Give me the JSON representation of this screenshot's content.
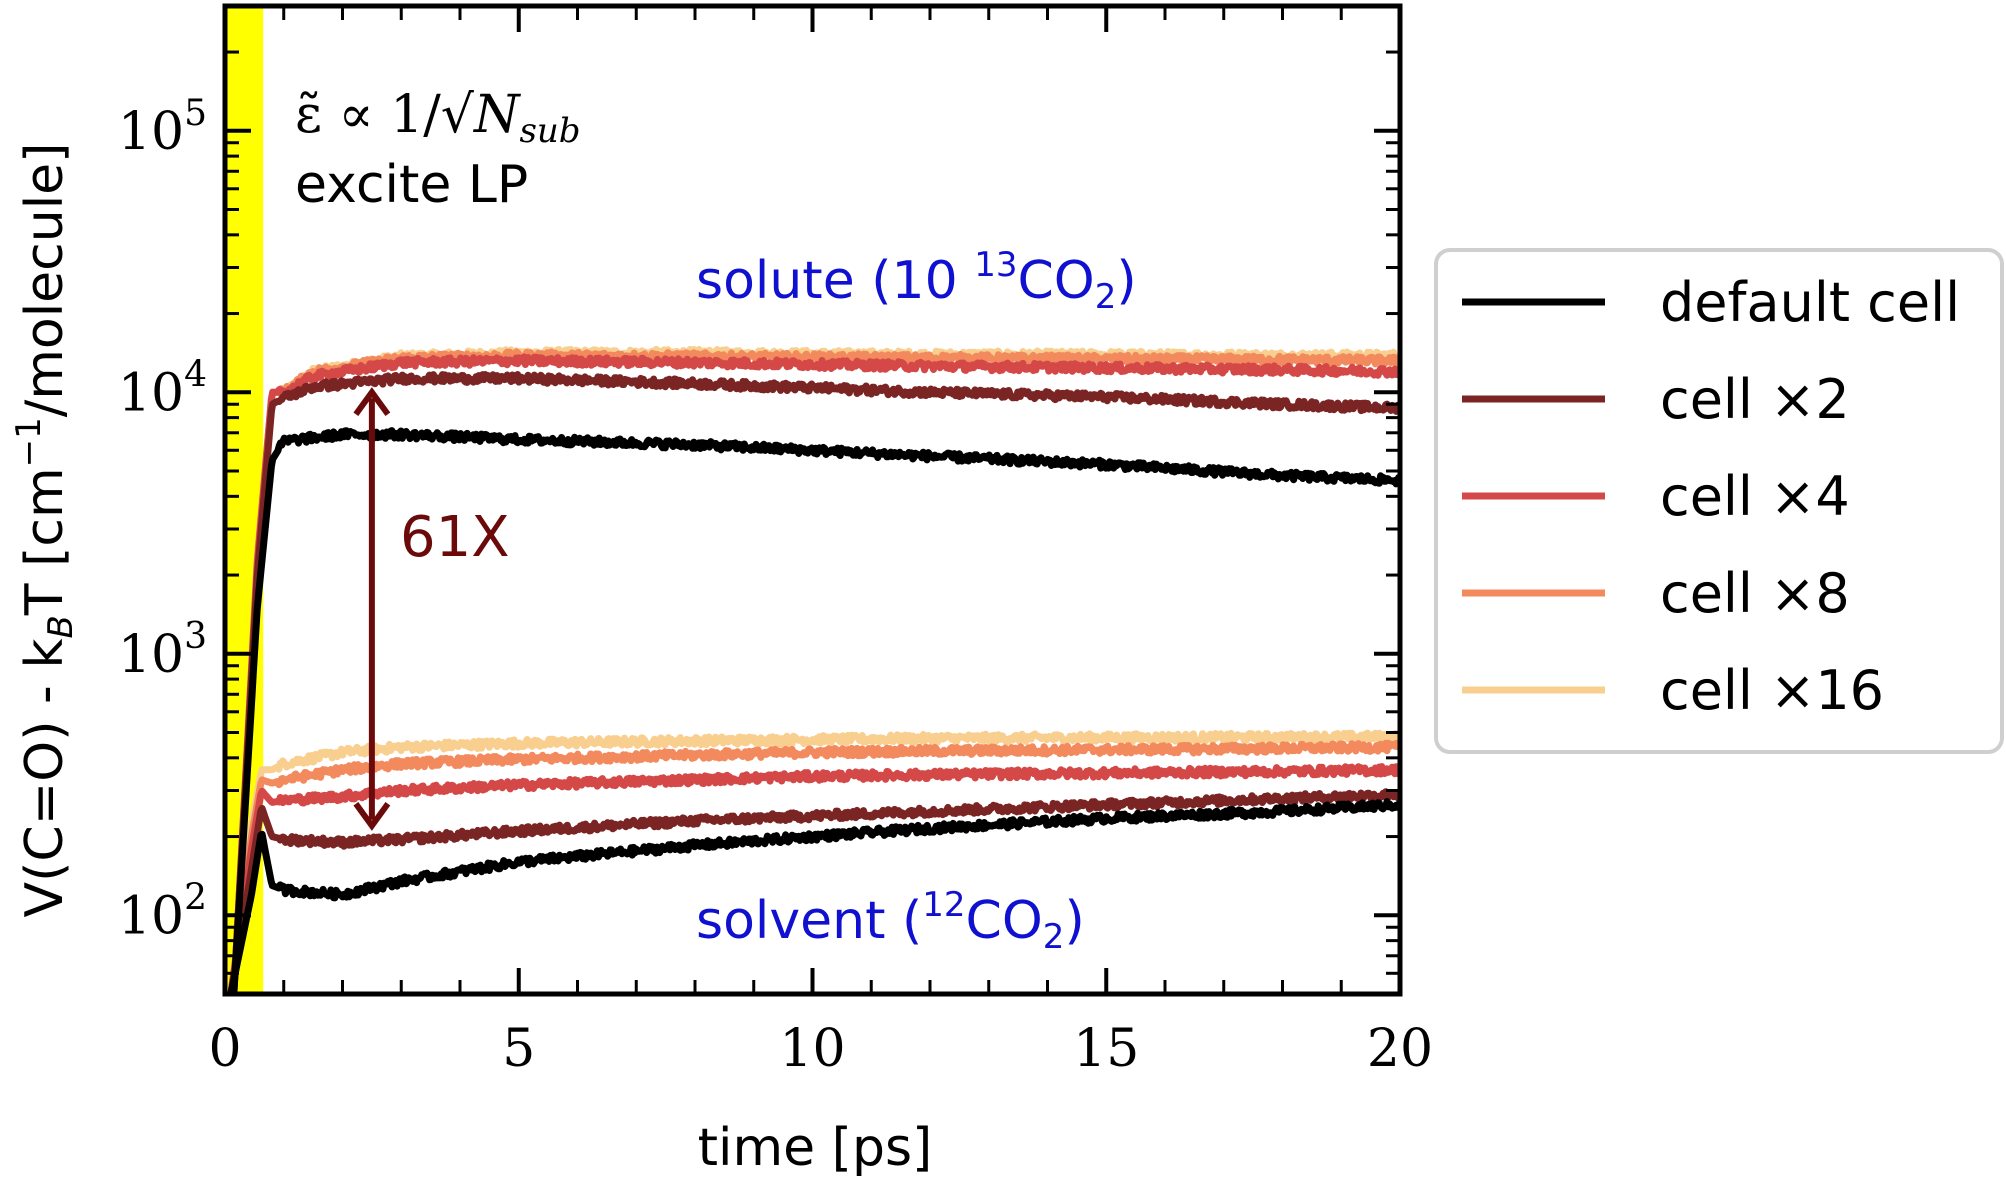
{
  "chart_data": {
    "type": "line",
    "xlabel": "time [ps]",
    "ylabel": "V(C=O) - k",
    "ylabel_sub": "B",
    "ylabel_tail": "T [cm",
    "ylabel_sup": "−1",
    "ylabel_end": "/molecule]",
    "xlim": [
      0,
      20
    ],
    "ylim": [
      50,
      300000
    ],
    "yscale": "log",
    "x_ticks": [
      "0",
      "5",
      "10",
      "15",
      "20"
    ],
    "x_tick_values": [
      0,
      5,
      10,
      15,
      20
    ],
    "y_ticks": [
      {
        "value": 100,
        "base": "10",
        "exp": "2"
      },
      {
        "value": 1000,
        "base": "10",
        "exp": "3"
      },
      {
        "value": 10000,
        "base": "10",
        "exp": "4"
      },
      {
        "value": 100000,
        "base": "10",
        "exp": "5"
      }
    ],
    "shaded_region": {
      "x_from": 0,
      "x_to": 0.65,
      "color": "#ffff00"
    },
    "legend_position": "right, outside",
    "series": [
      {
        "name": "default cell",
        "color": "#000000",
        "solute": [
          [
            0.15,
            50
          ],
          [
            0.55,
            1500
          ],
          [
            0.8,
            5500
          ],
          [
            1,
            6500
          ],
          [
            2,
            6900
          ],
          [
            3,
            6900
          ],
          [
            5,
            6600
          ],
          [
            8,
            6300
          ],
          [
            10,
            6000
          ],
          [
            12,
            5700
          ],
          [
            15,
            5300
          ],
          [
            18,
            4800
          ],
          [
            20,
            4600
          ]
        ],
        "solvent": [
          [
            0.1,
            50
          ],
          [
            0.45,
            120
          ],
          [
            0.62,
            210
          ],
          [
            0.8,
            130
          ],
          [
            1,
            125
          ],
          [
            2,
            120
          ],
          [
            3,
            135
          ],
          [
            5,
            160
          ],
          [
            8,
            185
          ],
          [
            10,
            200
          ],
          [
            12,
            215
          ],
          [
            15,
            235
          ],
          [
            18,
            250
          ],
          [
            20,
            265
          ]
        ]
      },
      {
        "name": "cell ×2",
        "color": "#7a2424",
        "solute": [
          [
            0.15,
            50
          ],
          [
            0.55,
            2000
          ],
          [
            0.8,
            9000
          ],
          [
            1,
            9500
          ],
          [
            1.5,
            10500
          ],
          [
            3,
            11300
          ],
          [
            5,
            11300
          ],
          [
            8,
            10800
          ],
          [
            10,
            10400
          ],
          [
            12,
            10000
          ],
          [
            15,
            9600
          ],
          [
            18,
            9000
          ],
          [
            20,
            8700
          ]
        ],
        "solvent": [
          [
            0.1,
            50
          ],
          [
            0.45,
            150
          ],
          [
            0.62,
            260
          ],
          [
            0.8,
            200
          ],
          [
            1,
            195
          ],
          [
            2,
            190
          ],
          [
            3,
            195
          ],
          [
            5,
            210
          ],
          [
            8,
            230
          ],
          [
            10,
            240
          ],
          [
            12,
            250
          ],
          [
            15,
            265
          ],
          [
            18,
            280
          ],
          [
            20,
            290
          ]
        ]
      },
      {
        "name": "cell ×4",
        "color": "#d44848",
        "solute": [
          [
            0.15,
            50
          ],
          [
            0.55,
            2200
          ],
          [
            0.8,
            10000
          ],
          [
            1,
            10000
          ],
          [
            1.5,
            11500
          ],
          [
            3,
            13000
          ],
          [
            5,
            13200
          ],
          [
            8,
            13000
          ],
          [
            10,
            12800
          ],
          [
            12,
            12600
          ],
          [
            15,
            12400
          ],
          [
            18,
            12200
          ],
          [
            20,
            12000
          ]
        ],
        "solvent": [
          [
            0.1,
            50
          ],
          [
            0.45,
            180
          ],
          [
            0.62,
            300
          ],
          [
            0.8,
            270
          ],
          [
            1,
            275
          ],
          [
            2,
            285
          ],
          [
            3,
            300
          ],
          [
            5,
            315
          ],
          [
            8,
            330
          ],
          [
            10,
            340
          ],
          [
            12,
            345
          ],
          [
            15,
            350
          ],
          [
            18,
            355
          ],
          [
            20,
            360
          ]
        ]
      },
      {
        "name": "cell ×8",
        "color": "#f28a5e",
        "solute": [
          [
            0.15,
            50
          ],
          [
            0.55,
            2300
          ],
          [
            0.8,
            10000
          ],
          [
            1,
            10000
          ],
          [
            1.5,
            12000
          ],
          [
            3,
            13500
          ],
          [
            5,
            13800
          ],
          [
            8,
            13700
          ],
          [
            10,
            13600
          ],
          [
            12,
            13500
          ],
          [
            15,
            13400
          ],
          [
            18,
            13300
          ],
          [
            20,
            13200
          ]
        ],
        "solvent": [
          [
            0.1,
            50
          ],
          [
            0.45,
            200
          ],
          [
            0.62,
            330
          ],
          [
            0.8,
            320
          ],
          [
            1,
            330
          ],
          [
            2,
            360
          ],
          [
            3,
            380
          ],
          [
            5,
            395
          ],
          [
            8,
            410
          ],
          [
            10,
            420
          ],
          [
            12,
            425
          ],
          [
            15,
            430
          ],
          [
            18,
            435
          ],
          [
            20,
            440
          ]
        ]
      },
      {
        "name": "cell ×16",
        "color": "#f9cf90",
        "solute": [
          [
            0.15,
            50
          ],
          [
            0.55,
            2300
          ],
          [
            0.8,
            10000
          ],
          [
            1,
            10000
          ],
          [
            1.5,
            12000
          ],
          [
            3,
            13700
          ],
          [
            5,
            14100
          ],
          [
            8,
            14100
          ],
          [
            10,
            14000
          ],
          [
            12,
            13900
          ],
          [
            15,
            13900
          ],
          [
            18,
            13800
          ],
          [
            20,
            13800
          ]
        ],
        "solvent": [
          [
            0.1,
            50
          ],
          [
            0.45,
            220
          ],
          [
            0.62,
            360
          ],
          [
            0.8,
            360
          ],
          [
            1,
            380
          ],
          [
            2,
            420
          ],
          [
            3,
            440
          ],
          [
            5,
            455
          ],
          [
            8,
            465
          ],
          [
            10,
            470
          ],
          [
            12,
            475
          ],
          [
            15,
            478
          ],
          [
            18,
            480
          ],
          [
            20,
            482
          ]
        ]
      }
    ],
    "annotations": {
      "formula_lhs": "ε̃ ∝ 1/√",
      "formula_N": "N",
      "formula_sub": "sub",
      "excite": "excite LP",
      "solute_prefix": "solute (10 ",
      "solute_sup": "13",
      "solute_mid": "CO",
      "solute_sub": "2",
      "solute_end": ")",
      "solvent_prefix": "solvent (",
      "solvent_sup": "12",
      "solvent_mid": "CO",
      "solvent_sub": "2",
      "solvent_end": ")",
      "ratio_label": "61X",
      "ratio_arrow": {
        "x": 2.5,
        "y_from": 220,
        "y_to": 10000,
        "color": "#6b0a0a"
      }
    }
  }
}
